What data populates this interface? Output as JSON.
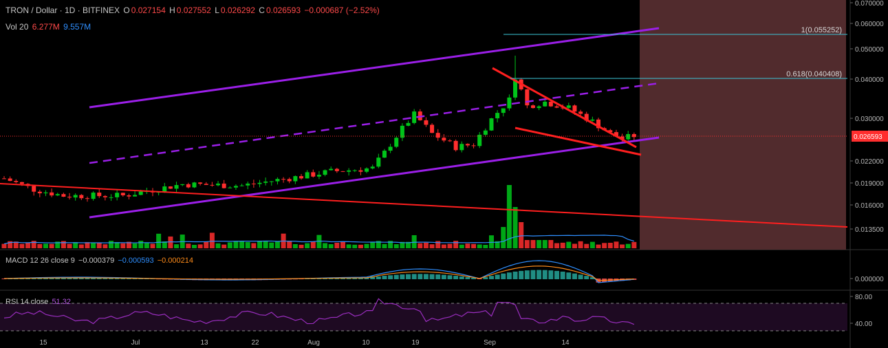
{
  "legend": {
    "symbol": "TRON / Dollar · 1D · BITFINEX",
    "o_label": "O",
    "o": "0.027154",
    "h_label": "H",
    "h": "0.027552",
    "l_label": "L",
    "l": "0.026292",
    "c_label": "C",
    "c": "0.026593",
    "change": "−0.000687 (−2.52%)",
    "vol_label": "Vol 20",
    "vol_1": "6.277M",
    "vol_2": "9.557M",
    "macd_label": "MACD 12 26 close 9",
    "macd_1": "−0.000379",
    "macd_2": "−0.000593",
    "macd_3": "−0.000214",
    "rsi_label": "RSI 14 close",
    "rsi_value": "51.32"
  },
  "colors": {
    "up": "#00c41a",
    "down": "#ff2e2e",
    "channel": "#9b1fe8",
    "trend": "#ff1f1f",
    "fib": "#3cc7d9",
    "forecast_zone": "#5a3032",
    "macd_line": "#2f8fff",
    "signal_line": "#ff8c1a",
    "rsi_line": "#9b2ec0"
  },
  "chart_data": {
    "type": "candlestick",
    "price_axis": {
      "ticks": [
        "0.070000",
        "0.060000",
        "0.050000",
        "0.040000",
        "0.030000",
        "0.022000",
        "0.019000",
        "0.016000",
        "0.013500"
      ],
      "scale": "log",
      "current_price": "0.026593"
    },
    "x_axis": {
      "ticks": [
        "15",
        "Jul",
        "13",
        "22",
        "Aug",
        "10",
        "19",
        "Sep",
        "14"
      ]
    },
    "fibonacci": [
      {
        "label": "1(0.055252)",
        "value": 0.055252
      },
      {
        "label": "0.618(0.040408)",
        "value": 0.040408
      }
    ],
    "macd_axis": {
      "ticks": [
        "0.000000"
      ]
    },
    "rsi_axis": {
      "ticks": [
        "80.00",
        "40.00"
      ],
      "bands": [
        70,
        30
      ]
    }
  }
}
